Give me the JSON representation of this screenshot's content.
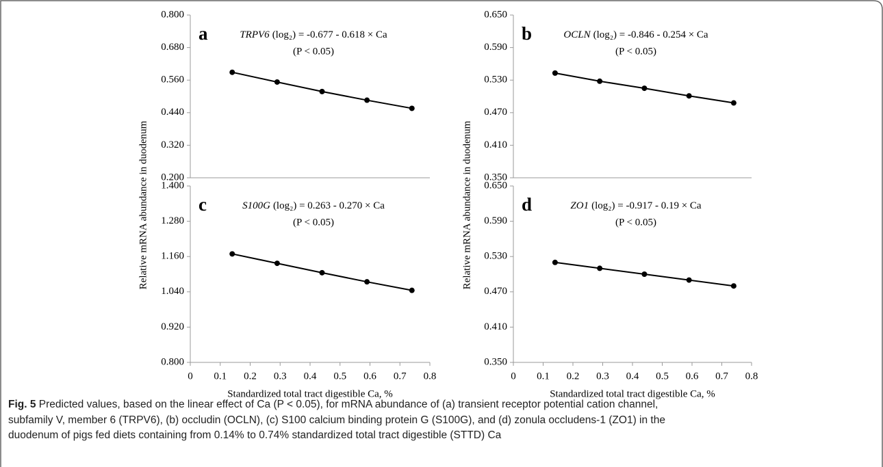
{
  "chart_data": [
    {
      "type": "line",
      "panel_label": "a",
      "annotation": {
        "gene": "TRPV6",
        "formula": "(log₂) = -0.677 - 0.618 × Ca",
        "significance": "(P < 0.05)"
      },
      "ylabel": "Relative mRNA abundance in duodenum",
      "x": [
        0.14,
        0.29,
        0.44,
        0.59,
        0.74
      ],
      "series": [
        {
          "color": "#000000",
          "values": [
            0.589,
            0.553,
            0.518,
            0.486,
            0.456
          ]
        }
      ],
      "xlim": [
        0,
        0.8
      ],
      "ylim": [
        0.2,
        0.8
      ],
      "yticks": [
        {
          "value": 0.8,
          "label": "0.800"
        },
        {
          "value": 0.68,
          "label": "0.680"
        },
        {
          "value": 0.56,
          "label": "0.560"
        },
        {
          "value": 0.44,
          "label": "0.440"
        },
        {
          "value": 0.32,
          "label": "0.320"
        },
        {
          "value": 0.2,
          "label": "0.200"
        }
      ]
    },
    {
      "type": "line",
      "panel_label": "b",
      "annotation": {
        "gene": "OCLN",
        "formula": "(log₂) = -0.846 - 0.254 × Ca",
        "significance": "(P < 0.05)"
      },
      "ylabel": "Relative mRNA abundance in duodenum",
      "x": [
        0.14,
        0.29,
        0.44,
        0.59,
        0.74
      ],
      "series": [
        {
          "color": "#000000",
          "values": [
            0.543,
            0.528,
            0.515,
            0.501,
            0.488
          ]
        }
      ],
      "xlim": [
        0,
        0.8
      ],
      "ylim": [
        0.35,
        0.65
      ],
      "yticks": [
        {
          "value": 0.65,
          "label": "0.650"
        },
        {
          "value": 0.59,
          "label": "0.590"
        },
        {
          "value": 0.53,
          "label": "0.530"
        },
        {
          "value": 0.47,
          "label": "0.470"
        },
        {
          "value": 0.41,
          "label": "0.410"
        },
        {
          "value": 0.35,
          "label": "0.350"
        }
      ]
    },
    {
      "type": "line",
      "panel_label": "c",
      "annotation": {
        "gene": "S100G",
        "formula": "(log₂) = 0.263 - 0.270 × Ca",
        "significance": "(P < 0.05)"
      },
      "xlabel": "Standardized total tract digestible Ca, %",
      "x": [
        0.14,
        0.29,
        0.44,
        0.59,
        0.74
      ],
      "series": [
        {
          "color": "#000000",
          "values": [
            1.169,
            1.137,
            1.105,
            1.074,
            1.045
          ]
        }
      ],
      "xlim": [
        0,
        0.8
      ],
      "ylim": [
        0.8,
        1.4
      ],
      "xticks": [
        0,
        0.1,
        0.2,
        0.3,
        0.4,
        0.5,
        0.6,
        0.7,
        0.8
      ],
      "yticks": [
        {
          "value": 1.4,
          "label": "1.400"
        },
        {
          "value": 1.28,
          "label": "1.280"
        },
        {
          "value": 1.16,
          "label": "1.160"
        },
        {
          "value": 1.04,
          "label": "1.040"
        },
        {
          "value": 0.92,
          "label": "0.920"
        },
        {
          "value": 0.8,
          "label": "0.800"
        }
      ]
    },
    {
      "type": "line",
      "panel_label": "d",
      "annotation": {
        "gene": "ZO1",
        "formula": "(log₂) = -0.917 - 0.19 × Ca",
        "significance": "(P < 0.05)"
      },
      "xlabel": "Standardized total tract digestible Ca, %",
      "x": [
        0.14,
        0.29,
        0.44,
        0.59,
        0.74
      ],
      "series": [
        {
          "color": "#000000",
          "values": [
            0.52,
            0.51,
            0.5,
            0.49,
            0.48
          ]
        }
      ],
      "xlim": [
        0,
        0.8
      ],
      "ylim": [
        0.35,
        0.65
      ],
      "xticks": [
        0,
        0.1,
        0.2,
        0.3,
        0.4,
        0.5,
        0.6,
        0.7,
        0.8
      ],
      "yticks": [
        {
          "value": 0.65,
          "label": "0.650"
        },
        {
          "value": 0.59,
          "label": "0.590"
        },
        {
          "value": 0.53,
          "label": "0.530"
        },
        {
          "value": 0.47,
          "label": "0.470"
        },
        {
          "value": 0.41,
          "label": "0.410"
        },
        {
          "value": 0.35,
          "label": "0.350"
        }
      ]
    }
  ],
  "caption": {
    "label": "Fig. 5",
    "lines": [
      " Predicted values, based on the linear effect of Ca (P < 0.05), for mRNA abundance of (a) transient receptor potential cation channel,",
      "subfamily V, member 6 (TRPV6), (b) occludin (OCLN), (c) S100 calcium binding protein G (S100G), and (d) zonula occludens-1 (ZO1) in the",
      "duodenum of pigs fed diets containing from 0.14% to 0.74% standardized total tract digestible (STTD) Ca"
    ]
  }
}
